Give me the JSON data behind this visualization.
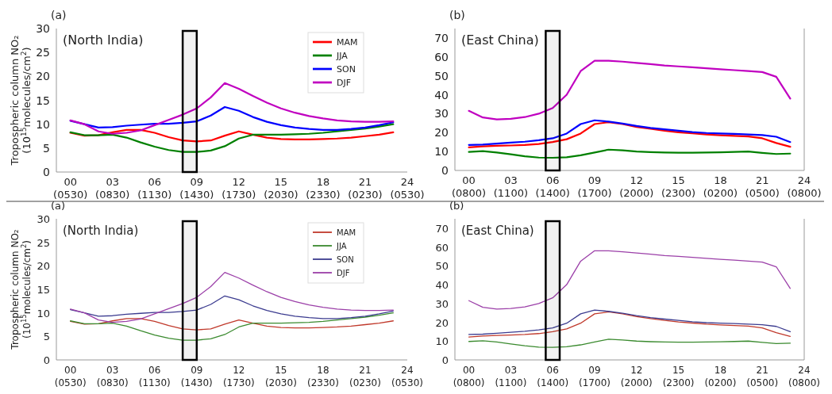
{
  "chart_data": [
    {
      "type": "line",
      "title": "(a)",
      "subtitle": "(North India)",
      "annotations": [
        "(0530)",
        "(0830)",
        "(1130)",
        "(1430)",
        "(1730)",
        "(2030)",
        "(2330)",
        "(0230)",
        "(0530)"
      ],
      "ylabel": "Tropospheric column NO₂\n(10$^{15}$molecules/cm$^{2}$)",
      "x": [
        0,
        1,
        2,
        3,
        4,
        5,
        6,
        7,
        8,
        9,
        10,
        11,
        12,
        13,
        14,
        15,
        16,
        17,
        18,
        19,
        20,
        21,
        22,
        23
      ],
      "xlim": [
        -1,
        24
      ],
      "xticks": [
        {
          "value": 0,
          "label": "00"
        },
        {
          "value": 3,
          "label": "03"
        },
        {
          "value": 6,
          "label": "06"
        },
        {
          "value": 9,
          "label": "09"
        },
        12,
        15,
        18,
        21,
        24
      ],
      "ylim": [
        0,
        30
      ],
      "yticks": [
        0,
        5,
        10,
        15,
        20,
        25,
        30
      ],
      "legend": "top right",
      "bands": [
        {
          "axis": "x",
          "from": 8,
          "to": 9,
          "color": "#000000"
        }
      ],
      "series": [
        {
          "name": "MAM",
          "color": "#ff0000",
          "values": [
            8.2,
            7.6,
            7.7,
            8.3,
            8.8,
            8.8,
            8.2,
            7.3,
            6.6,
            6.4,
            6.6,
            7.6,
            8.5,
            7.8,
            7.2,
            6.9,
            6.8,
            6.8,
            6.9,
            7.0,
            7.2,
            7.5,
            7.8,
            8.3
          ]
        },
        {
          "name": "JJA",
          "color": "#008000",
          "values": [
            8.3,
            7.7,
            7.7,
            7.8,
            7.2,
            6.2,
            5.3,
            4.6,
            4.2,
            4.2,
            4.5,
            5.4,
            7.0,
            7.8,
            7.8,
            7.8,
            7.9,
            8.0,
            8.2,
            8.5,
            8.8,
            9.1,
            9.5,
            10.0
          ]
        },
        {
          "name": "SON",
          "color": "#0000ff",
          "values": [
            10.7,
            10.0,
            9.3,
            9.4,
            9.7,
            9.9,
            10.1,
            10.1,
            10.3,
            10.6,
            11.8,
            13.6,
            12.8,
            11.5,
            10.5,
            9.8,
            9.3,
            9.0,
            8.8,
            8.8,
            9.0,
            9.3,
            9.8,
            10.4
          ]
        },
        {
          "name": "DJF",
          "color": "#c000c0",
          "values": [
            10.8,
            10.0,
            8.5,
            8.0,
            8.2,
            8.7,
            9.8,
            10.9,
            12.0,
            13.3,
            15.6,
            18.6,
            17.4,
            15.9,
            14.5,
            13.3,
            12.4,
            11.7,
            11.2,
            10.8,
            10.6,
            10.5,
            10.5,
            10.6
          ]
        }
      ]
    },
    {
      "type": "line",
      "title": "(b)",
      "subtitle": "(East China)",
      "annotations": [
        "(0800)",
        "(1100)",
        "(1400)",
        "(1700)",
        "(2000)",
        "(2300)",
        "(0200)",
        "(0500)",
        "(0800)"
      ],
      "x": [
        0,
        1,
        2,
        3,
        4,
        5,
        6,
        7,
        8,
        9,
        10,
        11,
        12,
        13,
        14,
        15,
        16,
        17,
        18,
        19,
        20,
        21,
        22,
        23
      ],
      "xlim": [
        -1,
        24
      ],
      "xticks": [
        {
          "value": 0,
          "label": "00"
        },
        {
          "value": 3,
          "label": "03"
        },
        {
          "value": 6,
          "label": "06"
        },
        {
          "value": 9,
          "label": "09"
        },
        12,
        15,
        18,
        21,
        24
      ],
      "ylim": [
        0,
        75
      ],
      "yticks": [
        0,
        10,
        20,
        30,
        40,
        50,
        60,
        70
      ],
      "bands": [
        {
          "axis": "x",
          "from": 5.5,
          "to": 6.5,
          "color": "#000000"
        }
      ],
      "series": [
        {
          "color": "#ff0000",
          "values": [
            12.2,
            12.7,
            13.0,
            13.2,
            13.5,
            14.0,
            15.0,
            16.5,
            19.5,
            24.5,
            25.5,
            24.5,
            23.0,
            22.0,
            21.0,
            20.2,
            19.6,
            19.0,
            18.6,
            18.3,
            18.0,
            17.0,
            14.5,
            12.5
          ]
        },
        {
          "color": "#008000",
          "values": [
            9.8,
            10.2,
            9.5,
            8.5,
            7.5,
            6.8,
            6.7,
            7.0,
            8.0,
            9.5,
            11.0,
            10.6,
            10.0,
            9.7,
            9.5,
            9.4,
            9.4,
            9.5,
            9.6,
            9.8,
            10.0,
            9.3,
            8.7,
            8.9
          ]
        },
        {
          "color": "#0000ff",
          "values": [
            13.5,
            13.7,
            14.2,
            14.7,
            15.2,
            16.0,
            17.0,
            19.5,
            24.5,
            26.5,
            25.8,
            24.8,
            23.5,
            22.5,
            21.7,
            21.0,
            20.3,
            19.8,
            19.5,
            19.3,
            19.0,
            18.7,
            17.8,
            15.0
          ]
        },
        {
          "color": "#c000c0",
          "values": [
            31.5,
            28.0,
            27.0,
            27.3,
            28.2,
            30.0,
            33.0,
            40.0,
            52.5,
            58.0,
            58.0,
            57.5,
            56.8,
            56.2,
            55.5,
            55.0,
            54.5,
            54.0,
            53.5,
            53.0,
            52.5,
            52.0,
            49.5,
            38.0
          ]
        }
      ]
    },
    {
      "type": "line",
      "title": "(a)",
      "subtitle": "(North India)",
      "annotations": [
        "(0530)",
        "(0830)",
        "(1130)",
        "(1430)",
        "(1730)",
        "(2030)",
        "(2330)",
        "(0230)",
        "(0530)"
      ],
      "ylabel": "Tropospheric column NO₂\n(10$^{15}$molecules/cm$^{2}$)",
      "x": [
        0,
        1,
        2,
        3,
        4,
        5,
        6,
        7,
        8,
        9,
        10,
        11,
        12,
        13,
        14,
        15,
        16,
        17,
        18,
        19,
        20,
        21,
        22,
        23
      ],
      "xlim": [
        -1,
        24
      ],
      "xticks": [
        {
          "value": 0,
          "label": "00"
        },
        {
          "value": 3,
          "label": "03"
        },
        {
          "value": 6,
          "label": "06"
        },
        {
          "value": 9,
          "label": "09"
        },
        12,
        15,
        18,
        21,
        24
      ],
      "ylim": [
        0,
        30
      ],
      "yticks": [
        0,
        5,
        10,
        15,
        20,
        25,
        30
      ],
      "legend": "top right",
      "bands": [
        {
          "axis": "x",
          "from": 8,
          "to": 9,
          "color": "#000000"
        }
      ],
      "series": [
        {
          "name": "MAM",
          "color": "#c0392b",
          "values": [
            8.2,
            7.6,
            7.7,
            8.3,
            8.8,
            8.8,
            8.2,
            7.3,
            6.6,
            6.4,
            6.6,
            7.6,
            8.5,
            7.8,
            7.2,
            6.9,
            6.8,
            6.8,
            6.9,
            7.0,
            7.2,
            7.5,
            7.8,
            8.3
          ]
        },
        {
          "name": "JJA",
          "color": "#3a8a2e",
          "values": [
            8.3,
            7.7,
            7.7,
            7.8,
            7.2,
            6.2,
            5.3,
            4.6,
            4.2,
            4.2,
            4.5,
            5.4,
            7.0,
            7.8,
            7.8,
            7.8,
            7.9,
            8.0,
            8.2,
            8.5,
            8.8,
            9.1,
            9.5,
            10.0
          ]
        },
        {
          "name": "SON",
          "color": "#3b3b8f",
          "values": [
            10.7,
            10.0,
            9.3,
            9.4,
            9.7,
            9.9,
            10.1,
            10.1,
            10.3,
            10.6,
            11.8,
            13.6,
            12.8,
            11.5,
            10.5,
            9.8,
            9.3,
            9.0,
            8.8,
            8.8,
            9.0,
            9.3,
            9.8,
            10.4
          ]
        },
        {
          "name": "DJF",
          "color": "#9b3fa8",
          "values": [
            10.8,
            10.0,
            8.5,
            8.0,
            8.2,
            8.7,
            9.8,
            10.9,
            12.0,
            13.3,
            15.6,
            18.6,
            17.4,
            15.9,
            14.5,
            13.3,
            12.4,
            11.7,
            11.2,
            10.8,
            10.6,
            10.5,
            10.5,
            10.6
          ]
        }
      ]
    },
    {
      "type": "line",
      "title": "(b)",
      "subtitle": "(East China)",
      "annotations": [
        "(0800)",
        "(1100)",
        "(1400)",
        "(1700)",
        "(2000)",
        "(2300)",
        "(0200)",
        "(0500)",
        "(0800)"
      ],
      "x": [
        0,
        1,
        2,
        3,
        4,
        5,
        6,
        7,
        8,
        9,
        10,
        11,
        12,
        13,
        14,
        15,
        16,
        17,
        18,
        19,
        20,
        21,
        22,
        23
      ],
      "xlim": [
        -1,
        24
      ],
      "xticks": [
        {
          "value": 0,
          "label": "00"
        },
        {
          "value": 3,
          "label": "03"
        },
        {
          "value": 6,
          "label": "06"
        },
        {
          "value": 9,
          "label": "09"
        },
        12,
        15,
        18,
        21,
        24
      ],
      "ylim": [
        0,
        75
      ],
      "yticks": [
        0,
        10,
        20,
        30,
        40,
        50,
        60,
        70
      ],
      "bands": [
        {
          "axis": "x",
          "from": 5.5,
          "to": 6.5,
          "color": "#000000"
        }
      ],
      "series": [
        {
          "color": "#c0392b",
          "values": [
            12.2,
            12.7,
            13.0,
            13.2,
            13.5,
            14.0,
            15.0,
            16.5,
            19.5,
            24.5,
            25.5,
            24.5,
            23.0,
            22.0,
            21.0,
            20.2,
            19.6,
            19.0,
            18.6,
            18.3,
            18.0,
            17.0,
            14.5,
            12.5
          ]
        },
        {
          "color": "#3a8a2e",
          "values": [
            9.8,
            10.2,
            9.5,
            8.5,
            7.5,
            6.8,
            6.7,
            7.0,
            8.0,
            9.5,
            11.0,
            10.6,
            10.0,
            9.7,
            9.5,
            9.4,
            9.4,
            9.5,
            9.6,
            9.8,
            10.0,
            9.3,
            8.7,
            8.9
          ]
        },
        {
          "color": "#3b3b8f",
          "values": [
            13.5,
            13.7,
            14.2,
            14.7,
            15.2,
            16.0,
            17.0,
            19.5,
            24.5,
            26.5,
            25.8,
            24.8,
            23.5,
            22.5,
            21.7,
            21.0,
            20.3,
            19.8,
            19.5,
            19.3,
            19.0,
            18.7,
            17.8,
            15.0
          ]
        },
        {
          "color": "#9b3fa8",
          "values": [
            31.5,
            28.0,
            27.0,
            27.3,
            28.2,
            30.0,
            33.0,
            40.0,
            52.5,
            58.0,
            58.0,
            57.5,
            56.8,
            56.2,
            55.5,
            55.0,
            54.5,
            54.0,
            53.5,
            53.0,
            52.5,
            52.0,
            49.5,
            38.0
          ]
        }
      ]
    }
  ]
}
